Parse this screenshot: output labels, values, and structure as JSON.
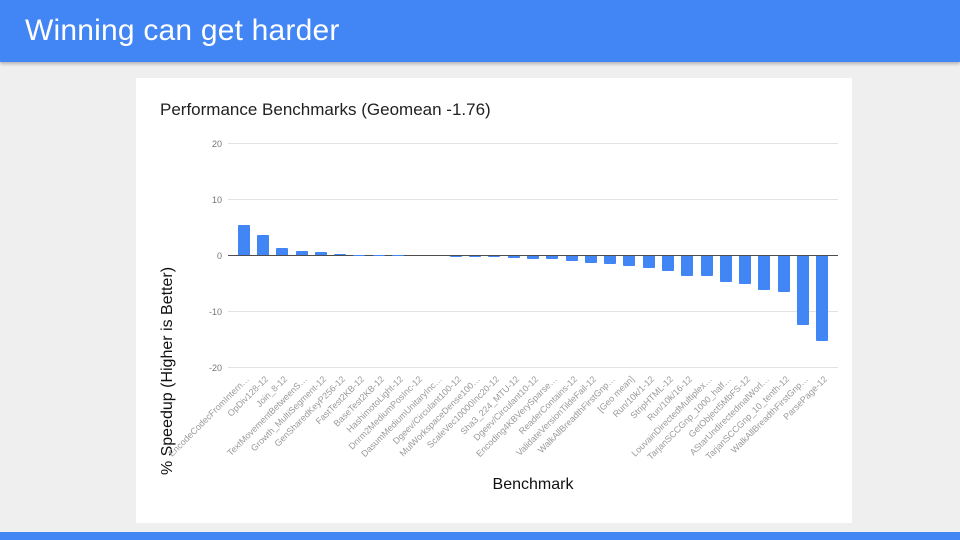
{
  "slide": {
    "header": {
      "title": "Winning can get harder"
    },
    "accent_color": "#4285F4",
    "background_color": "#EFEFEF"
  },
  "chart_data": {
    "type": "bar",
    "title": "Performance Benchmarks (Geomean -1.76)",
    "xlabel": "Benchmark",
    "ylabel": "% Speedup (Higher is Better)",
    "ylim": [
      -20,
      20
    ],
    "yticks": [
      20,
      10,
      0,
      -10,
      -20
    ],
    "grid": true,
    "legend": "none",
    "bar_color": "#4285F4",
    "geomean": -1.76,
    "categories": [
      "EncodeCodecFromIntern…",
      "OpDiv128-12",
      "Join_8-12",
      "TextMovementBetweenS…",
      "Growth_MultiSegment-12",
      "GenSharedKeyP256-12",
      "FastTest2KB-12",
      "BaseTest2KB-12",
      "HashimotoLight-12",
      "Dnrm2MediumPosInc-12",
      "DasumMediumUnitaryInc…",
      "Dgeev/Circulant100-12",
      "MulWorkspaceDense100…",
      "ScaleVec10000Inc20-12",
      "Sha3_224_MTU-12",
      "Dgeev/Circulant10-12",
      "Encoding4KBVerySparse…",
      "ReaderContains-12",
      "ValidateVersionTildeFail-12",
      "WalkAllBreadthFirstGnp…",
      "[Geo mean]",
      "Run/10k/1-12",
      "StripHTML-12",
      "Run/10k/16-12",
      "LouvainDirectedMultiplex…",
      "TarjanSCCGnp_1000_half…",
      "GetObject5MbFS-12",
      "AStarUndirectedmalWorl…",
      "TarjanSCCGnp_10_tenth-12",
      "WalkAllBreadthFirstGnp…",
      "ParsePage-12"
    ],
    "values": [
      5.3,
      3.5,
      1.2,
      0.8,
      0.5,
      0.2,
      0.05,
      0.03,
      0.02,
      0,
      0,
      -0.02,
      -0.05,
      -0.1,
      -0.3,
      -0.5,
      -0.6,
      -0.9,
      -1.2,
      -1.5,
      -1.76,
      -2.2,
      -2.6,
      -3.5,
      -3.5,
      -4.6,
      -5.0,
      -6.0,
      -6.4,
      -12.3,
      -15.1
    ]
  }
}
